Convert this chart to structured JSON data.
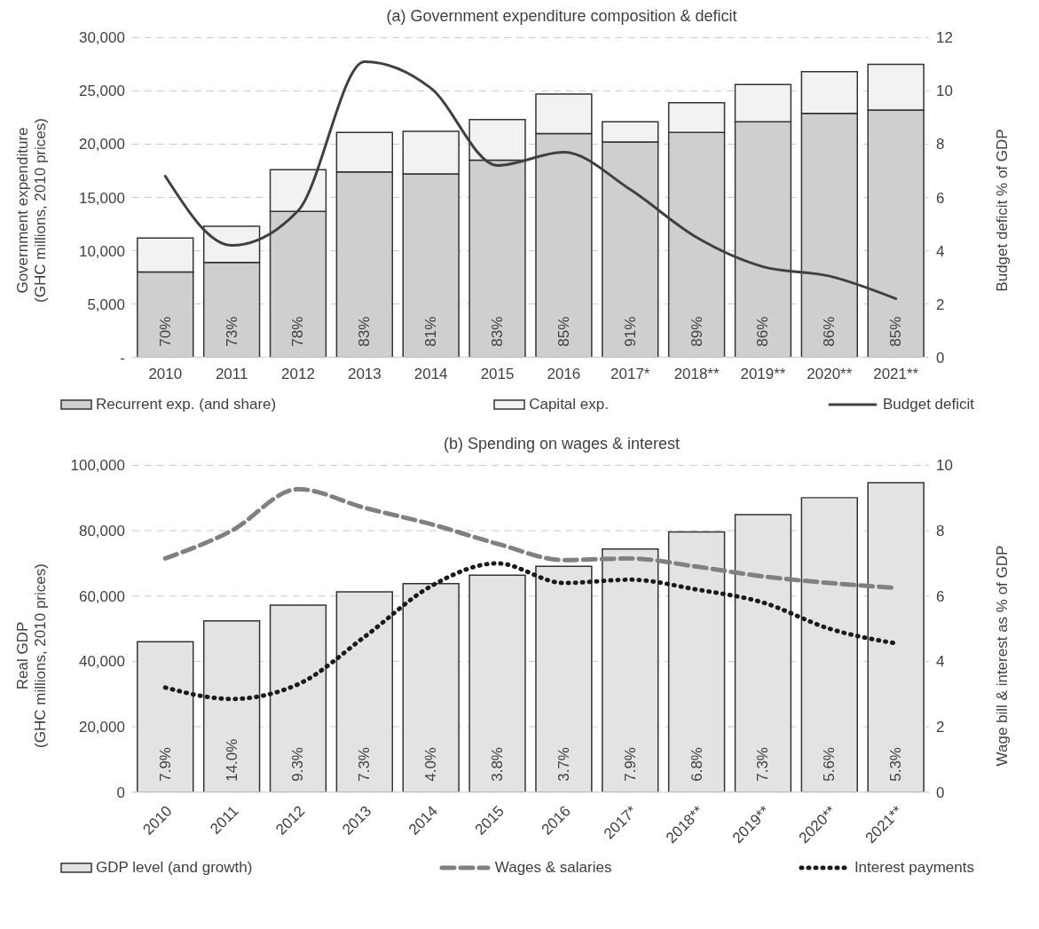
{
  "chart_data": [
    {
      "type": "bar",
      "stacked": true,
      "title": "(a) Government expenditure composition & deficit",
      "ylabel": "Government expenditure\n(GHC  millions, 2010 prices)",
      "y2label": "Budget deficit % of GDP",
      "categories": [
        "2010",
        "2011",
        "2012",
        "2013",
        "2014",
        "2015",
        "2016",
        "2017*",
        "2018**",
        "2019**",
        "2020**",
        "2021**"
      ],
      "series": [
        {
          "name": "Recurrent exp. (and share)",
          "color": "#d0cfd0",
          "values": [
            8000,
            8900,
            13700,
            17400,
            17200,
            18500,
            21000,
            20200,
            21100,
            22100,
            22900,
            23200
          ]
        },
        {
          "name": "Capital exp.",
          "color": "#f2f2f2",
          "values": [
            3200,
            3400,
            3900,
            3700,
            4000,
            3800,
            3700,
            1900,
            2800,
            3500,
            3900,
            4300
          ]
        },
        {
          "name": "Budget deficit",
          "type": "line",
          "axis": "y2",
          "color": "#404040",
          "line_style": "solid",
          "values": [
            6.8,
            4.2,
            5.5,
            11.1,
            10.1,
            7.2,
            7.7,
            6.3,
            4.5,
            3.4,
            3.05,
            2.2
          ]
        }
      ],
      "ylim": [
        0,
        30000
      ],
      "yticks": [
        {
          "value": 0,
          "label": "-"
        },
        {
          "value": 5000,
          "label": "5,000"
        },
        {
          "value": 10000,
          "label": "10,000"
        },
        {
          "value": 15000,
          "label": "15,000"
        },
        {
          "value": 20000,
          "label": "20,000"
        },
        {
          "value": 25000,
          "label": "25,000"
        },
        {
          "value": 30000,
          "label": "30,000"
        }
      ],
      "y2lim": [
        0,
        12
      ],
      "y2ticks": [
        0,
        2,
        4,
        6,
        8,
        10,
        12
      ],
      "grid": "y",
      "legend": "bottom",
      "marker": "none",
      "annotations": [
        "70%",
        "73%",
        "78%",
        "83%",
        "81%",
        "83%",
        "85%",
        "91%",
        "89%",
        "86%",
        "86%",
        "85%"
      ]
    },
    {
      "type": "bar",
      "title": "(b) Spending on wages & interest",
      "ylabel": "Real GDP\n(GHC millions, 2010 prices)",
      "y2label": "Wage bill & interest as % of GDP",
      "categories": [
        "2010",
        "2011",
        "2012",
        "2013",
        "2014",
        "2015",
        "2016",
        "2017*",
        "2018**",
        "2019**",
        "2020**",
        "2021**"
      ],
      "series": [
        {
          "name": "GDP level (and growth)",
          "color": "#e3e3e3",
          "values": [
            46000,
            52400,
            57200,
            61300,
            63800,
            66400,
            69100,
            74400,
            79600,
            84900,
            90100,
            94700
          ]
        },
        {
          "name": "Wages & salaries",
          "type": "line",
          "axis": "y2",
          "color": "#808080",
          "line_style": "dashed",
          "values": [
            7.15,
            8.0,
            9.27,
            8.7,
            8.2,
            7.6,
            7.1,
            7.15,
            6.9,
            6.6,
            6.4,
            6.25
          ]
        },
        {
          "name": "Interest payments",
          "type": "line",
          "axis": "y2",
          "color": "#1a1a1a",
          "line_style": "dotted",
          "values": [
            3.2,
            2.85,
            3.3,
            4.75,
            6.3,
            7.0,
            6.4,
            6.5,
            6.2,
            5.8,
            5.0,
            4.55
          ]
        }
      ],
      "ylim": [
        0,
        100000
      ],
      "yticks": [
        0,
        {
          "value": 20000,
          "label": "20,000"
        },
        {
          "value": 40000,
          "label": "40,000"
        },
        {
          "value": 60000,
          "label": "60,000"
        },
        {
          "value": 80000,
          "label": "80,000"
        },
        {
          "value": 100000,
          "label": "100,000"
        }
      ],
      "y2lim": [
        0,
        10
      ],
      "y2ticks": [
        0,
        2,
        4,
        6,
        8,
        10
      ],
      "grid": "y",
      "legend": "bottom",
      "marker": "none",
      "annotations": [
        "7.9%",
        "14.0%",
        "9.3%",
        "7.3%",
        "4.0%",
        "3.8%",
        "3.7%",
        "7.9%",
        "6.8%",
        "7.3%",
        "5.6%",
        "5.3%"
      ]
    }
  ]
}
